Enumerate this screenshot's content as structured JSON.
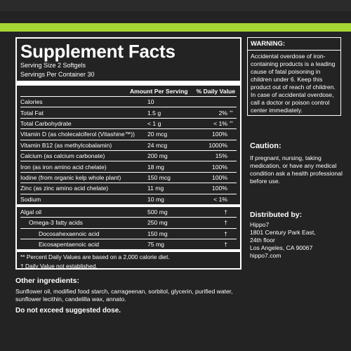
{
  "facts": {
    "title": "Supplement Facts",
    "serving_size": "Serving Size 2 Softgels",
    "servings_per_container": "Servings Per Container 30",
    "header_amount": "Amount Per Serving",
    "header_dv": "% Daily Value",
    "rows": [
      {
        "name": "Calories",
        "amount": "10",
        "dv": "",
        "sym": ""
      },
      {
        "name": "Total Fat",
        "amount": "1.5 g",
        "dv": "2%",
        "sym": "**"
      },
      {
        "name": "Total Carbohydrate",
        "amount": "< 1 g",
        "dv": "< 1%",
        "sym": "**"
      },
      {
        "name": "Vitamin D (as cholecalciferol (Vitashine™))",
        "amount": "20 mcg",
        "dv": "100%",
        "sym": ""
      },
      {
        "name": "Vitamin B12 (as methylcobalamin)",
        "amount": "24 mcg",
        "dv": "1000%",
        "sym": ""
      },
      {
        "name": "Calcium (as calcium carbonate)",
        "amount": "200 mg",
        "dv": "15%",
        "sym": ""
      },
      {
        "name": "Iron (as iron amino acid chelate)",
        "amount": "18 mg",
        "dv": "100%",
        "sym": ""
      },
      {
        "name": "Iodine (from organic kelp whole plant)",
        "amount": "150 mcg",
        "dv": "100%",
        "sym": ""
      },
      {
        "name": "Zinc (as zinc amino acid chelate)",
        "amount": "11 mg",
        "dv": "100%",
        "sym": ""
      },
      {
        "name": "Sodium",
        "amount": "10 mg",
        "dv": "< 1%",
        "sym": ""
      }
    ],
    "rows2": [
      {
        "name": "Algal oil",
        "amount": "500 mg",
        "dv": "†",
        "indent": 0
      },
      {
        "name": "Omega-3 fatty acids",
        "amount": "250 mg",
        "dv": "†",
        "indent": 1
      },
      {
        "name": "Docosahexaenoic acid",
        "amount": "150 mg",
        "dv": "†",
        "indent": 2
      },
      {
        "name": "Eicosapentaenoic acid",
        "amount": "75 mg",
        "dv": "†",
        "indent": 2
      }
    ],
    "footnote1": "** Percent Daily Values are based on  a 2,000 calorie diet.",
    "footnote2": "† Daily Value not established."
  },
  "warning": {
    "heading": "WARNING:",
    "text": "Accidental overdose of iron-containing products is a leading cause of fatal poisoning in children under 6. Keep this product out of reach of children. In case of accidental overdose, call a doctor or poison control center immediately."
  },
  "caution": {
    "heading": "Caution:",
    "text": "If pregnant, nursing, taking medication, or have any medical condition ask a health professional before use."
  },
  "distributor": {
    "heading": "Distributed by:",
    "lines": [
      "Hippo7",
      "1801 Century Park East,",
      "24th floor",
      "Los Angeles, CA 90067",
      "hippo7.com"
    ]
  },
  "other": {
    "heading": "Other ingredients:",
    "text": "Sunflower oil, modified food starch, carrageenan, sorbitol, glycerin, purified water, sunflower lecithin, candelilla wax, annato.",
    "final_warning": "Do not exceed suggested dose."
  },
  "colors": {
    "background": "#232323",
    "accent": "#a6d633",
    "text": "#ffffff"
  }
}
